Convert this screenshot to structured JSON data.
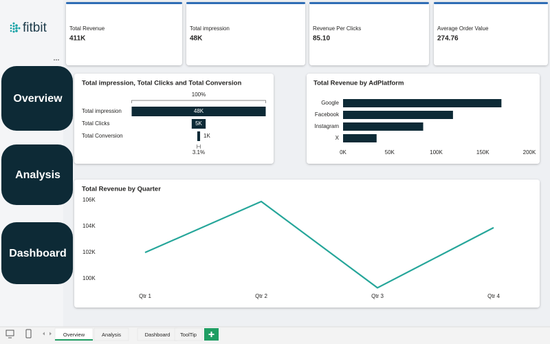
{
  "logo": "fitbit",
  "kpis": [
    {
      "label": "Total Revenue",
      "value": "411K"
    },
    {
      "label": "Total impression",
      "value": "48K"
    },
    {
      "label": "Revenue Per Clicks",
      "value": "85.10"
    },
    {
      "label": "Average Order Value",
      "value": "274.76"
    }
  ],
  "nav": [
    "Overview",
    "Analysis",
    "Dashboard"
  ],
  "chart_data": [
    {
      "type": "funnel",
      "title": "Total impression, Total Clicks and Total Conversion",
      "categories": [
        "Total impression",
        "Total Clicks",
        "Total Conversion"
      ],
      "values": [
        48000,
        5000,
        1000
      ],
      "value_labels": [
        "48K",
        "5K",
        "1K"
      ],
      "color": "#0d2a36",
      "annotations": [
        "100%",
        "3.1%"
      ]
    },
    {
      "type": "bar",
      "orientation": "horizontal",
      "title": "Total Revenue by AdPlatform",
      "categories": [
        "Google",
        "Facebook",
        "Instagram",
        "X"
      ],
      "values": [
        170000,
        118000,
        86000,
        36000
      ],
      "color": "#0d2a36",
      "xlim": [
        0,
        200000
      ],
      "xticks": [
        {
          "value": 0,
          "label": "0K"
        },
        {
          "value": 50000,
          "label": "50K"
        },
        {
          "value": 100000,
          "label": "100K"
        },
        {
          "value": 150000,
          "label": "150K"
        },
        {
          "value": 200000,
          "label": "200K"
        }
      ]
    },
    {
      "type": "line",
      "title": "Total Revenue by Quarter",
      "categories": [
        "Qtr 1",
        "Qtr 2",
        "Qtr 3",
        "Qtr 4"
      ],
      "values": [
        102000,
        105900,
        99300,
        103900
      ],
      "color": "#26a69a",
      "ylim": [
        99000,
        106500
      ],
      "yticks": [
        {
          "value": 100000,
          "label": "100K"
        },
        {
          "value": 102000,
          "label": "102K"
        },
        {
          "value": 104000,
          "label": "104K"
        },
        {
          "value": 106000,
          "label": "106K"
        }
      ]
    }
  ],
  "tabs": [
    "Overview",
    "Analysis",
    "Dashboard",
    "ToolTip"
  ]
}
